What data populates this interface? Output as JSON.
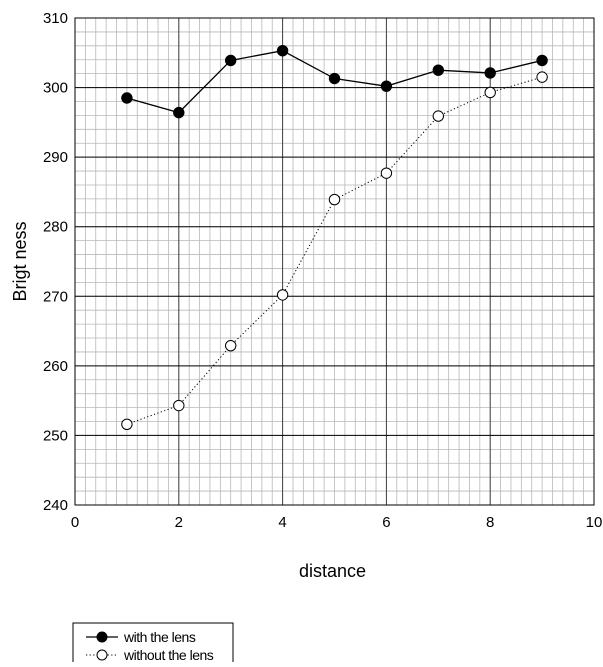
{
  "chart_data": {
    "type": "line",
    "title": "",
    "xlabel": "distance",
    "ylabel": "Brigt ness",
    "xlim": [
      0,
      10
    ],
    "ylim": [
      240,
      310
    ],
    "x_ticks": [
      "0",
      "2",
      "4",
      "6",
      "8",
      "10"
    ],
    "y_ticks": [
      "240",
      "250",
      "260",
      "270",
      "280",
      "290",
      "300",
      "310"
    ],
    "grid": true,
    "legend_position": "bottom-left",
    "series": [
      {
        "name": "with the lens",
        "marker": "filled-circle",
        "line_style": "solid",
        "color": "#000000",
        "points": [
          {
            "x": 1,
            "y": 298.5
          },
          {
            "x": 2,
            "y": 296.4
          },
          {
            "x": 3,
            "y": 303.9
          },
          {
            "x": 4,
            "y": 305.3
          },
          {
            "x": 5,
            "y": 301.3
          },
          {
            "x": 6,
            "y": 300.2
          },
          {
            "x": 7,
            "y": 302.5
          },
          {
            "x": 8,
            "y": 302.1
          },
          {
            "x": 9,
            "y": 303.9
          }
        ]
      },
      {
        "name": "without the lens",
        "marker": "open-circle",
        "line_style": "dotted",
        "color": "#000000",
        "points": [
          {
            "x": 1,
            "y": 251.6
          },
          {
            "x": 2,
            "y": 254.3
          },
          {
            "x": 3,
            "y": 262.9
          },
          {
            "x": 4,
            "y": 270.2
          },
          {
            "x": 5,
            "y": 283.9
          },
          {
            "x": 6,
            "y": 287.7
          },
          {
            "x": 7,
            "y": 295.9
          },
          {
            "x": 8,
            "y": 299.3
          },
          {
            "x": 9,
            "y": 301.5
          }
        ]
      }
    ]
  }
}
